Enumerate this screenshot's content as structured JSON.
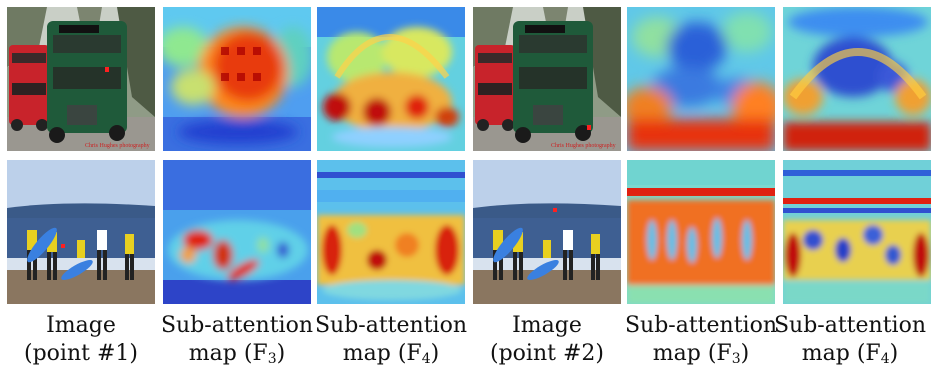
{
  "captions": [
    {
      "line1": "Image",
      "line2": "(point #1)"
    },
    {
      "line1": "Sub-attention",
      "line2_prefix": "map (F",
      "line2_sub": "3",
      "line2_suffix": ")"
    },
    {
      "line1": "Sub-attention",
      "line2_prefix": "map (F",
      "line2_sub": "4",
      "line2_suffix": ")"
    },
    {
      "line1": "Image",
      "line2": "(point #2)"
    },
    {
      "line1": "Sub-attention",
      "line2_prefix": "map (F",
      "line2_sub": "3",
      "line2_suffix": ")"
    },
    {
      "line1": "Sub-attention",
      "line2_prefix": "map (F",
      "line2_sub": "4",
      "line2_suffix": ")"
    }
  ],
  "photo_watermark": "Chris Hughes photography"
}
